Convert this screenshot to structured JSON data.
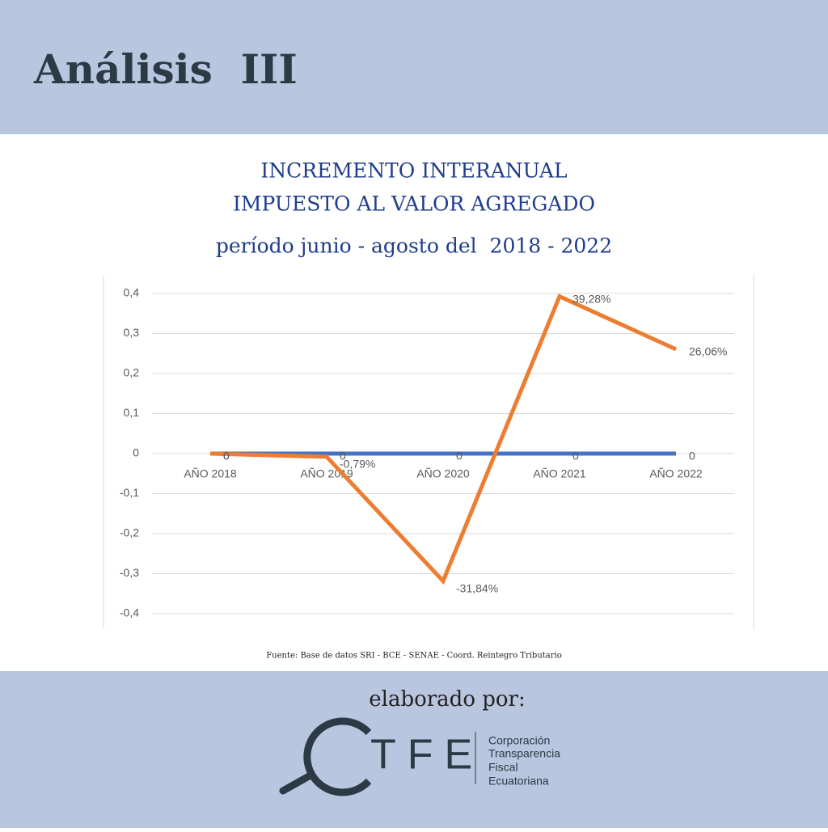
{
  "header": {
    "title": "Análisis  III"
  },
  "chart_data": {
    "type": "line",
    "title": [
      "INCREMENTO INTERANUAL",
      "IMPUESTO AL VALOR AGREGADO"
    ],
    "subtitle": "período junio - agosto del  2018 - 2022",
    "categories": [
      "AÑO 2018",
      "AÑO 2019",
      "AÑO 2020",
      "AÑO 2021",
      "AÑO 2022"
    ],
    "series": [
      {
        "color": "#4472c4",
        "values": [
          0,
          0,
          0,
          0,
          0
        ]
      },
      {
        "color": "#ed7d31",
        "values": [
          0,
          -0.0079,
          -0.3184,
          0.3928,
          0.2606
        ],
        "value_labels": [
          "0",
          "-0,79%",
          "-31,84%",
          "39,28%",
          "26,06%"
        ]
      }
    ],
    "ylim": [
      -0.4,
      0.4
    ],
    "yticks": [
      {
        "value": 0.4,
        "label": "0,4"
      },
      {
        "value": 0.3,
        "label": "0,3"
      },
      {
        "value": 0.2,
        "label": "0,2"
      },
      {
        "value": 0.1,
        "label": "0,1"
      },
      0,
      {
        "value": -0.1,
        "label": "-0,1"
      },
      {
        "value": -0.2,
        "label": "-0,2"
      },
      {
        "value": -0.3,
        "label": "-0,3"
      },
      {
        "value": -0.4,
        "label": "-0,4"
      }
    ],
    "grid": true,
    "source": "Fuente: Base de datos SRI - BCE - SENAE - Coord. Reintegro Tributario"
  },
  "footer": {
    "label": "elaborado por:",
    "logo": "TFE",
    "organization": [
      "Corporación",
      "Transparencia",
      "Fiscal",
      "Ecuatoriana"
    ]
  }
}
